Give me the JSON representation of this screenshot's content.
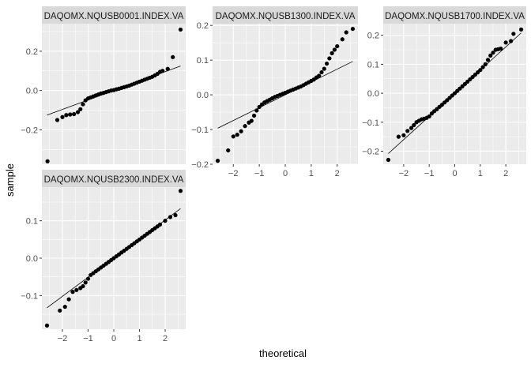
{
  "chart_data": {
    "type": "scatter",
    "subtype": "qq-plot-facets",
    "xlabel": "theoretical",
    "ylabel": "sample",
    "panel_background": "#EBEBEB",
    "strip_background": "#D9D9D9",
    "grid_color": "#FFFFFF",
    "point_color": "#000000",
    "line_color": "#000000",
    "facets": [
      {
        "label": "DAQOMX.NQUSB0001.INDEX.VA",
        "xlim": [
          -2.8,
          2.8
        ],
        "ylim": [
          -0.375,
          0.34
        ],
        "x_ticks": [
          -2,
          -1,
          0,
          1,
          2
        ],
        "y_ticks": [
          -0.2,
          0.0,
          0.2
        ],
        "y_tick_labels": [
          "-0.2",
          "0.0",
          "0.2"
        ],
        "show_x_axis": false,
        "ref_line": {
          "intercept": 0.0,
          "slope": 0.048
        },
        "points": [
          [
            -2.58,
            -0.36
          ],
          [
            -2.2,
            -0.15
          ],
          [
            -2.0,
            -0.135
          ],
          [
            -1.85,
            -0.125
          ],
          [
            -1.7,
            -0.122
          ],
          [
            -1.55,
            -0.12
          ],
          [
            -1.4,
            -0.11
          ],
          [
            -1.3,
            -0.095
          ],
          [
            -1.2,
            -0.07
          ],
          [
            -1.1,
            -0.05
          ],
          [
            -1.0,
            -0.04
          ],
          [
            -0.9,
            -0.035
          ],
          [
            -0.8,
            -0.03
          ],
          [
            -0.7,
            -0.025
          ],
          [
            -0.6,
            -0.02
          ],
          [
            -0.5,
            -0.015
          ],
          [
            -0.4,
            -0.012
          ],
          [
            -0.3,
            -0.008
          ],
          [
            -0.2,
            -0.004
          ],
          [
            -0.1,
            0.0
          ],
          [
            0.0,
            0.002
          ],
          [
            0.1,
            0.006
          ],
          [
            0.2,
            0.009
          ],
          [
            0.3,
            0.013
          ],
          [
            0.4,
            0.017
          ],
          [
            0.5,
            0.021
          ],
          [
            0.6,
            0.025
          ],
          [
            0.7,
            0.03
          ],
          [
            0.8,
            0.035
          ],
          [
            0.9,
            0.04
          ],
          [
            1.0,
            0.045
          ],
          [
            1.1,
            0.05
          ],
          [
            1.2,
            0.055
          ],
          [
            1.3,
            0.06
          ],
          [
            1.4,
            0.065
          ],
          [
            1.5,
            0.07
          ],
          [
            1.6,
            0.077
          ],
          [
            1.7,
            0.085
          ],
          [
            1.8,
            0.095
          ],
          [
            1.9,
            0.1
          ],
          [
            2.1,
            0.11
          ],
          [
            2.3,
            0.17
          ],
          [
            2.6,
            0.31
          ]
        ]
      },
      {
        "label": "DAQOMX.NQUSB1300.INDEX.VA",
        "xlim": [
          -2.8,
          2.8
        ],
        "ylim": [
          -0.2,
          0.205
        ],
        "x_ticks": [
          -2,
          -1,
          0,
          1,
          2
        ],
        "y_ticks": [
          -0.2,
          -0.1,
          0.0,
          0.1,
          0.2
        ],
        "y_tick_labels": [
          "-0.2",
          "-0.1",
          "0.0",
          "0.1",
          "0.2"
        ],
        "show_x_axis": true,
        "ref_line": {
          "intercept": 0.0,
          "slope": 0.037
        },
        "points": [
          [
            -2.6,
            -0.19
          ],
          [
            -2.2,
            -0.16
          ],
          [
            -2.0,
            -0.12
          ],
          [
            -1.85,
            -0.115
          ],
          [
            -1.7,
            -0.105
          ],
          [
            -1.55,
            -0.09
          ],
          [
            -1.4,
            -0.08
          ],
          [
            -1.3,
            -0.075
          ],
          [
            -1.2,
            -0.06
          ],
          [
            -1.1,
            -0.045
          ],
          [
            -1.0,
            -0.035
          ],
          [
            -0.9,
            -0.028
          ],
          [
            -0.8,
            -0.022
          ],
          [
            -0.7,
            -0.018
          ],
          [
            -0.6,
            -0.014
          ],
          [
            -0.5,
            -0.01
          ],
          [
            -0.4,
            -0.006
          ],
          [
            -0.3,
            -0.003
          ],
          [
            -0.2,
            0.0
          ],
          [
            -0.1,
            0.003
          ],
          [
            0.0,
            0.006
          ],
          [
            0.1,
            0.009
          ],
          [
            0.2,
            0.012
          ],
          [
            0.3,
            0.015
          ],
          [
            0.4,
            0.018
          ],
          [
            0.5,
            0.021
          ],
          [
            0.6,
            0.024
          ],
          [
            0.7,
            0.028
          ],
          [
            0.8,
            0.032
          ],
          [
            0.9,
            0.036
          ],
          [
            1.0,
            0.04
          ],
          [
            1.1,
            0.044
          ],
          [
            1.2,
            0.05
          ],
          [
            1.3,
            0.055
          ],
          [
            1.4,
            0.065
          ],
          [
            1.5,
            0.075
          ],
          [
            1.6,
            0.09
          ],
          [
            1.7,
            0.105
          ],
          [
            1.8,
            0.12
          ],
          [
            1.9,
            0.13
          ],
          [
            2.0,
            0.14
          ],
          [
            2.2,
            0.16
          ],
          [
            2.35,
            0.18
          ],
          [
            2.6,
            0.19
          ]
        ]
      },
      {
        "label": "DAQOMX.NQUSB1700.INDEX.VA",
        "xlim": [
          -2.8,
          2.8
        ],
        "ylim": [
          -0.245,
          0.24
        ],
        "x_ticks": [
          -2,
          -1,
          0,
          1,
          2
        ],
        "y_ticks": [
          -0.2,
          -0.1,
          0.0,
          0.1,
          0.2
        ],
        "y_tick_labels": [
          "-0.2",
          "-0.1",
          "0.0",
          "0.1",
          "0.2"
        ],
        "show_x_axis": true,
        "ref_line": {
          "intercept": 0.0,
          "slope": 0.08
        },
        "points": [
          [
            -2.6,
            -0.23
          ],
          [
            -2.2,
            -0.15
          ],
          [
            -2.0,
            -0.145
          ],
          [
            -1.85,
            -0.13
          ],
          [
            -1.7,
            -0.12
          ],
          [
            -1.6,
            -0.11
          ],
          [
            -1.5,
            -0.1
          ],
          [
            -1.4,
            -0.095
          ],
          [
            -1.3,
            -0.09
          ],
          [
            -1.2,
            -0.088
          ],
          [
            -1.1,
            -0.085
          ],
          [
            -1.0,
            -0.08
          ],
          [
            -0.9,
            -0.07
          ],
          [
            -0.8,
            -0.062
          ],
          [
            -0.7,
            -0.055
          ],
          [
            -0.6,
            -0.047
          ],
          [
            -0.5,
            -0.04
          ],
          [
            -0.4,
            -0.032
          ],
          [
            -0.3,
            -0.024
          ],
          [
            -0.2,
            -0.016
          ],
          [
            -0.1,
            -0.008
          ],
          [
            0.0,
            0.0
          ],
          [
            0.1,
            0.008
          ],
          [
            0.2,
            0.016
          ],
          [
            0.3,
            0.024
          ],
          [
            0.4,
            0.032
          ],
          [
            0.5,
            0.04
          ],
          [
            0.6,
            0.048
          ],
          [
            0.7,
            0.056
          ],
          [
            0.8,
            0.064
          ],
          [
            0.9,
            0.072
          ],
          [
            1.0,
            0.08
          ],
          [
            1.1,
            0.09
          ],
          [
            1.2,
            0.1
          ],
          [
            1.3,
            0.115
          ],
          [
            1.4,
            0.13
          ],
          [
            1.5,
            0.14
          ],
          [
            1.6,
            0.15
          ],
          [
            1.7,
            0.152
          ],
          [
            1.8,
            0.154
          ],
          [
            2.0,
            0.175
          ],
          [
            2.2,
            0.18
          ],
          [
            2.3,
            0.205
          ],
          [
            2.6,
            0.22
          ]
        ]
      },
      {
        "label": "DAQOMX.NQUSB2300.INDEX.VA",
        "xlim": [
          -2.8,
          2.8
        ],
        "ylim": [
          -0.19,
          0.19
        ],
        "x_ticks": [
          -2,
          -1,
          0,
          1,
          2
        ],
        "y_ticks": [
          -0.1,
          0.0,
          0.1
        ],
        "y_tick_labels": [
          "-0.1",
          "0.0",
          "0.1"
        ],
        "show_x_axis": true,
        "ref_line": {
          "intercept": 0.0,
          "slope": 0.051
        },
        "points": [
          [
            -2.6,
            -0.18
          ],
          [
            -2.1,
            -0.14
          ],
          [
            -1.9,
            -0.13
          ],
          [
            -1.75,
            -0.11
          ],
          [
            -1.6,
            -0.09
          ],
          [
            -1.45,
            -0.085
          ],
          [
            -1.3,
            -0.08
          ],
          [
            -1.2,
            -0.075
          ],
          [
            -1.1,
            -0.065
          ],
          [
            -1.0,
            -0.055
          ],
          [
            -0.9,
            -0.045
          ],
          [
            -0.8,
            -0.04
          ],
          [
            -0.7,
            -0.035
          ],
          [
            -0.6,
            -0.03
          ],
          [
            -0.5,
            -0.025
          ],
          [
            -0.4,
            -0.02
          ],
          [
            -0.3,
            -0.015
          ],
          [
            -0.2,
            -0.01
          ],
          [
            -0.1,
            -0.005
          ],
          [
            0.0,
            0.0
          ],
          [
            0.1,
            0.005
          ],
          [
            0.2,
            0.01
          ],
          [
            0.3,
            0.015
          ],
          [
            0.4,
            0.02
          ],
          [
            0.5,
            0.025
          ],
          [
            0.6,
            0.03
          ],
          [
            0.7,
            0.035
          ],
          [
            0.8,
            0.04
          ],
          [
            0.9,
            0.045
          ],
          [
            1.0,
            0.05
          ],
          [
            1.1,
            0.055
          ],
          [
            1.2,
            0.06
          ],
          [
            1.3,
            0.065
          ],
          [
            1.4,
            0.07
          ],
          [
            1.5,
            0.075
          ],
          [
            1.6,
            0.08
          ],
          [
            1.7,
            0.085
          ],
          [
            1.8,
            0.09
          ],
          [
            2.0,
            0.1
          ],
          [
            2.2,
            0.11
          ],
          [
            2.4,
            0.115
          ],
          [
            2.6,
            0.18
          ]
        ]
      }
    ]
  }
}
